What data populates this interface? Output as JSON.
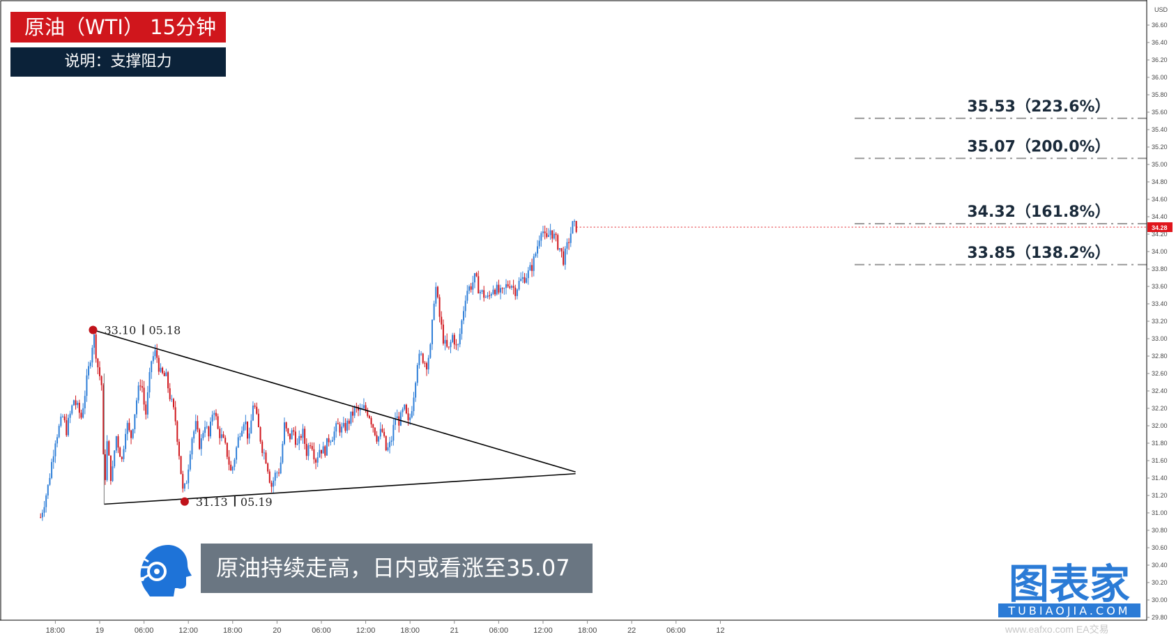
{
  "title": "原油（WTI） 15分钟",
  "description": "说明：支撑阻力",
  "annotation": "原油持续走高，日内或看涨至35.07",
  "watermark": "www.eafxo.com  EA交易",
  "logo": {
    "text": "图表家",
    "subtext": "TUBIAOJIA.COM"
  },
  "colors": {
    "up": "#2f7fd8",
    "down": "#d0161c",
    "title_bg": "#d0161c",
    "desc_bg": "#0b2239",
    "annotation_bg": "#6a7682",
    "logo": "#2b7bd6"
  },
  "chart_data": {
    "type": "candlestick",
    "instrument": "原油（WTI）",
    "timeframe": "15分钟",
    "y_axis": {
      "unit": "USD",
      "range": [
        29.8,
        36.8
      ],
      "ticks": [
        "36.60",
        "36.40",
        "36.20",
        "36.00",
        "35.80",
        "35.60",
        "35.40",
        "35.20",
        "35.00",
        "34.80",
        "34.60",
        "34.40",
        "34.20",
        "34.00",
        "33.80",
        "33.60",
        "33.40",
        "33.20",
        "33.00",
        "32.80",
        "32.60",
        "32.40",
        "32.20",
        "32.00",
        "31.80",
        "31.60",
        "31.40",
        "31.20",
        "31.00",
        "30.80",
        "30.60",
        "30.40",
        "30.20",
        "30.00",
        "29.80"
      ]
    },
    "x_axis": {
      "ticks": [
        {
          "label": "18:00",
          "hour": -6
        },
        {
          "label": "19",
          "hour": 0
        },
        {
          "label": "06:00",
          "hour": 6
        },
        {
          "label": "12:00",
          "hour": 12
        },
        {
          "label": "18:00",
          "hour": 18
        },
        {
          "label": "20",
          "hour": 24
        },
        {
          "label": "06:00",
          "hour": 30
        },
        {
          "label": "12:00",
          "hour": 36
        },
        {
          "label": "18:00",
          "hour": 42
        },
        {
          "label": "21",
          "hour": 48
        },
        {
          "label": "06:00",
          "hour": 54
        },
        {
          "label": "12:00",
          "hour": 60
        },
        {
          "label": "18:00",
          "hour": 66
        },
        {
          "label": "22",
          "hour": 72
        },
        {
          "label": "06:00",
          "hour": 78
        },
        {
          "label": "12",
          "hour": 84
        }
      ]
    },
    "last_price": "34.28",
    "path": [
      [
        -8.0,
        30.95
      ],
      [
        -7.0,
        31.3
      ],
      [
        -6.0,
        31.85
      ],
      [
        -5.0,
        32.1
      ],
      [
        -4.5,
        31.95
      ],
      [
        -3.5,
        32.3
      ],
      [
        -2.5,
        32.1
      ],
      [
        -1.5,
        32.65
      ],
      [
        -0.8,
        33.05
      ],
      [
        -0.3,
        32.7
      ],
      [
        0.3,
        32.45
      ],
      [
        0.6,
        31.2
      ],
      [
        1.0,
        31.8
      ],
      [
        1.6,
        31.35
      ],
      [
        2.2,
        31.9
      ],
      [
        3.0,
        31.6
      ],
      [
        3.6,
        32.05
      ],
      [
        4.2,
        31.85
      ],
      [
        5.0,
        32.3
      ],
      [
        5.6,
        32.55
      ],
      [
        6.2,
        32.1
      ],
      [
        7.0,
        32.75
      ],
      [
        7.6,
        32.85
      ],
      [
        8.2,
        32.6
      ],
      [
        9.0,
        32.55
      ],
      [
        9.6,
        32.3
      ],
      [
        10.2,
        32.1
      ],
      [
        10.8,
        31.65
      ],
      [
        11.3,
        31.2
      ],
      [
        11.8,
        31.4
      ],
      [
        12.4,
        31.85
      ],
      [
        13.0,
        32.0
      ],
      [
        13.6,
        31.75
      ],
      [
        14.2,
        32.05
      ],
      [
        14.8,
        31.85
      ],
      [
        15.4,
        32.25
      ],
      [
        16.0,
        31.95
      ],
      [
        16.6,
        31.85
      ],
      [
        17.2,
        31.7
      ],
      [
        17.8,
        31.45
      ],
      [
        18.4,
        31.7
      ],
      [
        19.0,
        31.95
      ],
      [
        19.6,
        32.1
      ],
      [
        20.2,
        31.8
      ],
      [
        20.8,
        32.3
      ],
      [
        21.4,
        32.0
      ],
      [
        22.0,
        31.75
      ],
      [
        22.6,
        31.6
      ],
      [
        23.2,
        31.3
      ],
      [
        23.8,
        31.45
      ],
      [
        24.4,
        31.5
      ],
      [
        25.0,
        32.0
      ],
      [
        25.6,
        31.85
      ],
      [
        26.2,
        31.95
      ],
      [
        26.8,
        31.75
      ],
      [
        27.4,
        31.95
      ],
      [
        28.0,
        31.7
      ],
      [
        28.6,
        31.85
      ],
      [
        29.2,
        31.6
      ],
      [
        29.8,
        31.75
      ],
      [
        30.4,
        31.7
      ],
      [
        31.0,
        31.85
      ],
      [
        31.6,
        31.9
      ],
      [
        32.2,
        32.0
      ],
      [
        32.8,
        31.95
      ],
      [
        33.4,
        32.0
      ],
      [
        34.0,
        32.1
      ],
      [
        34.6,
        32.2
      ],
      [
        35.2,
        32.15
      ],
      [
        35.8,
        32.2
      ],
      [
        36.4,
        32.15
      ],
      [
        37.0,
        32.0
      ],
      [
        37.6,
        31.85
      ],
      [
        38.2,
        31.95
      ],
      [
        38.8,
        31.7
      ],
      [
        39.4,
        31.8
      ],
      [
        40.0,
        32.1
      ],
      [
        40.6,
        32.05
      ],
      [
        41.2,
        32.2
      ],
      [
        41.8,
        32.0
      ],
      [
        42.4,
        32.3
      ],
      [
        43.0,
        32.75
      ],
      [
        43.6,
        32.8
      ],
      [
        44.2,
        32.7
      ],
      [
        44.8,
        32.9
      ],
      [
        45.4,
        33.65
      ],
      [
        46.0,
        33.25
      ],
      [
        46.6,
        32.95
      ],
      [
        47.2,
        32.85
      ],
      [
        47.8,
        33.05
      ],
      [
        48.4,
        32.85
      ],
      [
        49.0,
        33.2
      ],
      [
        49.6,
        33.55
      ],
      [
        50.2,
        33.6
      ],
      [
        50.8,
        33.7
      ],
      [
        51.4,
        33.55
      ],
      [
        52.0,
        33.5
      ],
      [
        52.6,
        33.45
      ],
      [
        53.2,
        33.6
      ],
      [
        53.8,
        33.55
      ],
      [
        54.4,
        33.5
      ],
      [
        55.0,
        33.6
      ],
      [
        55.6,
        33.65
      ],
      [
        56.2,
        33.55
      ],
      [
        56.8,
        33.65
      ],
      [
        57.4,
        33.7
      ],
      [
        58.0,
        33.75
      ],
      [
        58.6,
        33.85
      ],
      [
        59.2,
        34.05
      ],
      [
        59.8,
        34.3
      ],
      [
        60.4,
        34.1
      ],
      [
        61.0,
        34.25
      ],
      [
        61.6,
        34.15
      ],
      [
        62.2,
        34.05
      ],
      [
        62.8,
        33.9
      ],
      [
        63.4,
        34.1
      ],
      [
        64.0,
        34.3
      ],
      [
        64.5,
        34.28
      ]
    ],
    "levels": [
      {
        "label": "35.53（223.6%）",
        "price": 35.53
      },
      {
        "label": "35.07（200.0%）",
        "price": 35.07
      },
      {
        "label": "34.32（161.8%）",
        "price": 34.32
      },
      {
        "label": "33.85（138.2%）",
        "price": 33.85
      }
    ],
    "triangle": {
      "upper": [
        [
          -0.9,
          33.1
        ],
        [
          64.4,
          31.47
        ]
      ],
      "lower": [
        [
          0.6,
          31.1
        ],
        [
          64.4,
          31.45
        ]
      ]
    },
    "points": [
      {
        "hour": -0.9,
        "price": 33.1,
        "label_price": "33.10",
        "label_date": "05.18"
      },
      {
        "hour": 11.5,
        "price": 31.13,
        "label_price": "31.13",
        "label_date": "05.19"
      }
    ]
  }
}
